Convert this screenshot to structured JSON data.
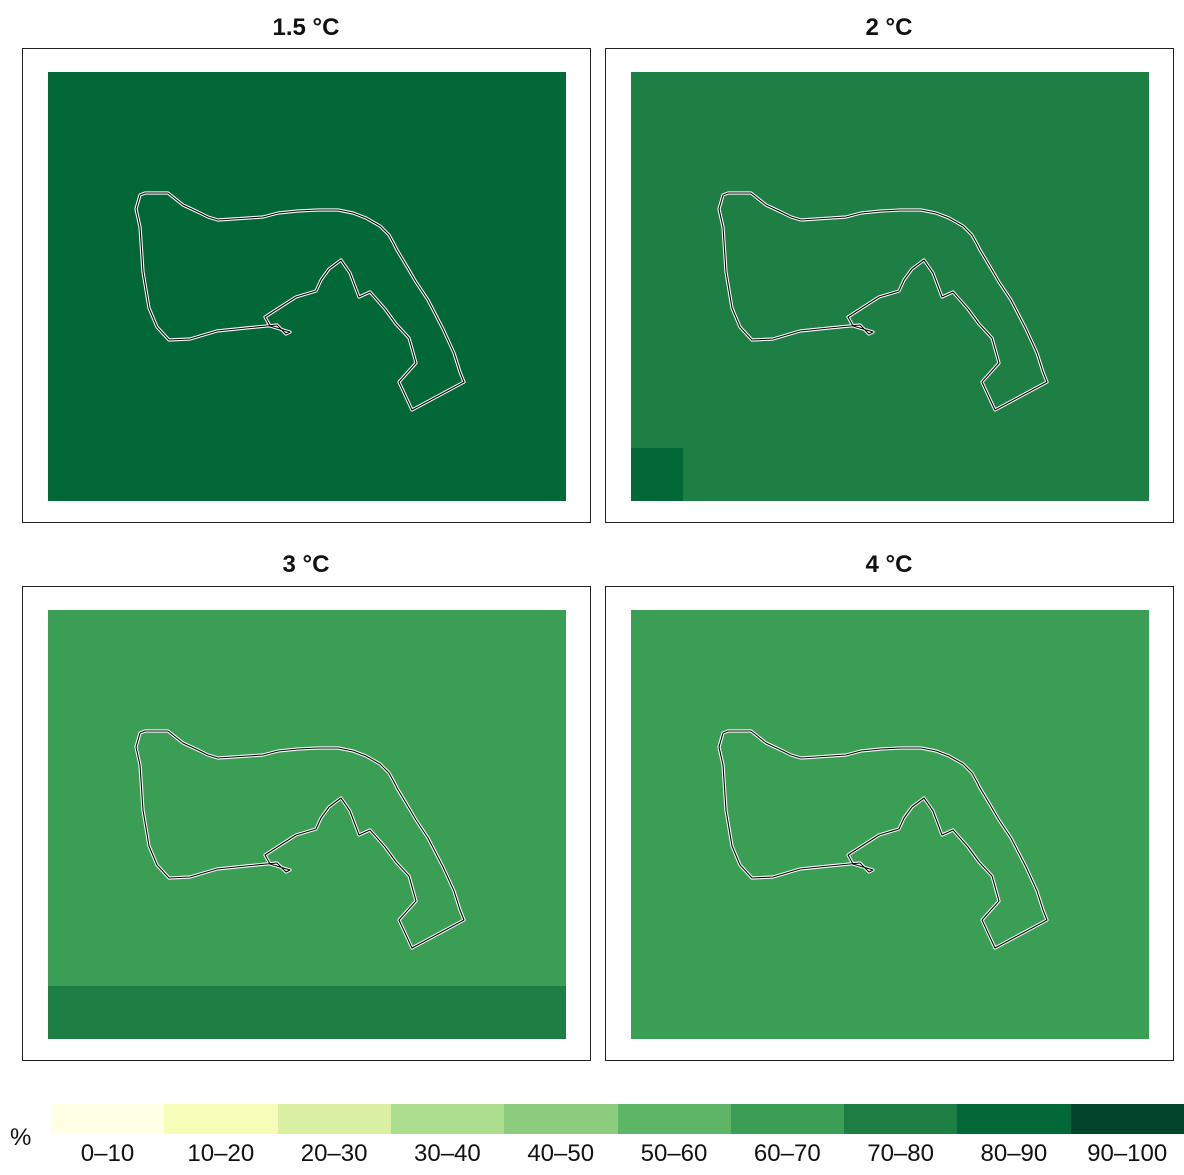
{
  "panels": [
    {
      "title": "1.5 °C",
      "fill": "#036837",
      "patches": []
    },
    {
      "title": "2 °C",
      "fill": "#1d7f44",
      "patches": [
        {
          "region": "bottom-left-cell",
          "color": "#036837"
        }
      ]
    },
    {
      "title": "3 °C",
      "fill": "#3a9e54",
      "patches": [
        {
          "region": "bottom-strip",
          "color": "#1d7f44"
        }
      ]
    },
    {
      "title": "4 °C",
      "fill": "#3a9e54",
      "patches": []
    }
  ],
  "boundary": {
    "line_color": "#000000",
    "halo_color": "#ffffff"
  },
  "legend": {
    "unit": "%",
    "items": [
      {
        "label": "0–10",
        "color": "#ffffe5"
      },
      {
        "label": "10–20",
        "color": "#f7fcb9"
      },
      {
        "label": "20–30",
        "color": "#d9f0a3"
      },
      {
        "label": "30–40",
        "color": "#addd8e"
      },
      {
        "label": "40–50",
        "color": "#8ccc7e"
      },
      {
        "label": "50–60",
        "color": "#5fb567"
      },
      {
        "label": "60–70",
        "color": "#3a9e54"
      },
      {
        "label": "70–80",
        "color": "#1d7f44"
      },
      {
        "label": "80–90",
        "color": "#036837"
      },
      {
        "label": "90–100",
        "color": "#004529"
      }
    ]
  }
}
